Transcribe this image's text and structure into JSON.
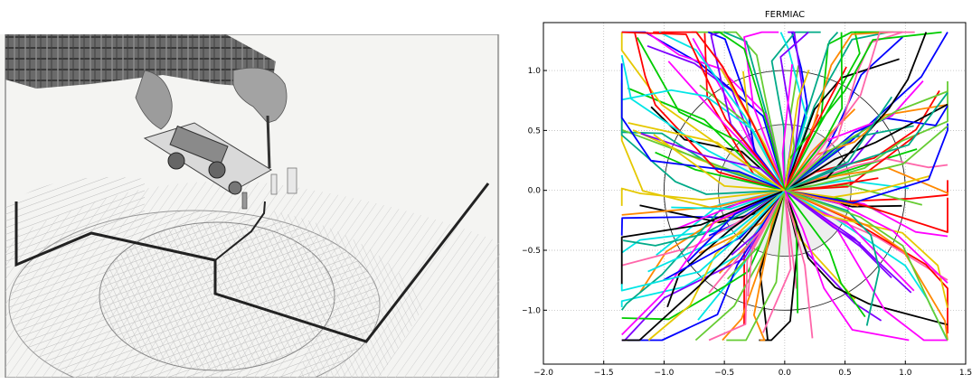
{
  "photo": {
    "caption": "",
    "colors": {
      "paper": "#f4f4f2",
      "trace": "#222222",
      "hatch": "#b9b9b9",
      "shirt": "#555555",
      "hand": "#9c9c9c"
    }
  },
  "chart_data": {
    "type": "line",
    "title": "FERMIAC",
    "xlabel": "",
    "ylabel": "",
    "xlim": [
      -2.0,
      1.5
    ],
    "ylim": [
      -1.45,
      1.4
    ],
    "xticks": [
      -2.0,
      -1.5,
      -1.0,
      -0.5,
      0.0,
      0.5,
      1.0,
      1.5
    ],
    "yticks": [
      -1.0,
      -0.5,
      0.0,
      0.5,
      1.0
    ],
    "xtick_labels": [
      "−2.0",
      "−1.5",
      "−1.0",
      "−0.5",
      "0.0",
      "0.5",
      "1.0",
      "1.5"
    ],
    "ytick_labels": [
      "−1.0",
      "−0.5",
      "0.0",
      "0.5",
      "1.0"
    ],
    "grid": true,
    "circles": [
      {
        "cx": 0,
        "cy": 0,
        "r": 1.0,
        "color": "#222222",
        "fill": "none"
      },
      {
        "cx": 0,
        "cy": 0,
        "r": 0.55,
        "color": "#444444",
        "fill": "#eeeeee"
      }
    ],
    "track_count": 150,
    "palette": [
      "#ff0000",
      "#00cc00",
      "#0000ff",
      "#00e5e5",
      "#ff00ff",
      "#e5c800",
      "#000000",
      "#ff8800",
      "#7f00ff",
      "#00aa88",
      "#ff66aa",
      "#66cc33"
    ],
    "colors": {
      "axes": "#000000",
      "grid": "#b0b0b0",
      "background": "#ffffff"
    }
  }
}
